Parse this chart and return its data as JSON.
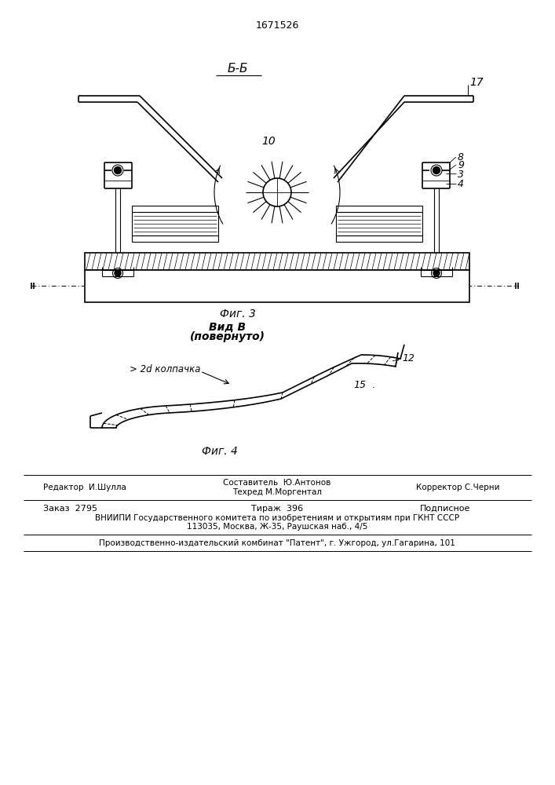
{
  "patent_number": "1671526",
  "fig3_label": "Фиг. 3",
  "fig4_label": "Фиг. 4",
  "section_label": "Б-Б",
  "view_label_line1": "Вид В",
  "view_label_line2": "(повернуто)",
  "label_10": "10",
  "label_17": "17",
  "label_8": "8",
  "label_9": "9",
  "label_3": "3",
  "label_4": "4",
  "label_12": "12",
  "label_15": "15",
  "label_2d": "> 2d колпачка",
  "footer_line1_left": "Редактор  И.Шулла",
  "footer_line1_center_top": "Составитель  Ю.Антонов",
  "footer_line1_center_bot": "Техред М.Моргентал",
  "footer_line1_right": "Корректор С.Черни",
  "footer_line2_col1": "Заказ  2795",
  "footer_line2_col2": "Тираж  396",
  "footer_line2_col3": "Подписное",
  "footer_line3a": "ВНИИПИ Государственного комитета по изобретениям и открытиям при ГКНТ СССР",
  "footer_line3b": "113035, Москва, Ж-35, Раушская наб., 4/5",
  "footer_line4": "Производственно-издательский комбинат \"Патент\", г. Ужгород, ул.Гагарина, 101",
  "bg_color": "#ffffff",
  "line_color": "#000000"
}
